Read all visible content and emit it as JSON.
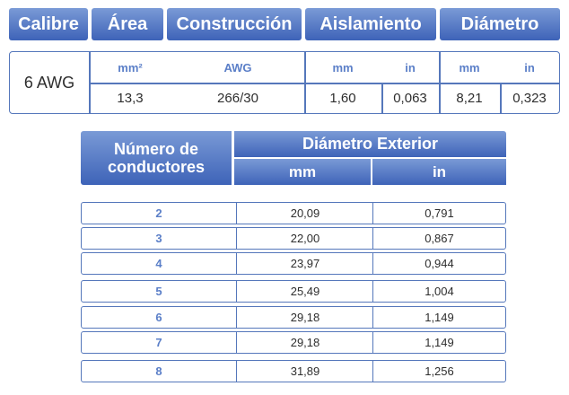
{
  "top_table": {
    "headers": {
      "calibre": "Calibre",
      "area": "Área",
      "construccion": "Construcción",
      "aislamiento": "Aislamiento",
      "diametro": "Diámetro"
    },
    "units": {
      "area": "mm²",
      "construccion": "AWG",
      "aislamiento_mm": "mm",
      "aislamiento_in": "in",
      "diametro_mm": "mm",
      "diametro_in": "in"
    },
    "values": {
      "calibre": "6 AWG",
      "area": "13,3",
      "construccion": "266/30",
      "aislamiento_mm": "1,60",
      "aislamiento_in": "0,063",
      "diametro_mm": "8,21",
      "diametro_in": "0,323"
    }
  },
  "bottom_table": {
    "header_conductores": "Número de conductores",
    "header_diametro": "Diámetro Exterior",
    "unit_mm": "mm",
    "unit_in": "in",
    "rows": [
      {
        "n": "2",
        "mm": "20,09",
        "in": "0,791"
      },
      {
        "n": "3",
        "mm": "22,00",
        "in": "0,867"
      },
      {
        "n": "4",
        "mm": "23,97",
        "in": "0,944"
      },
      {
        "n": "5",
        "mm": "25,49",
        "in": "1,004"
      },
      {
        "n": "6",
        "mm": "29,18",
        "in": "1,149"
      },
      {
        "n": "7",
        "mm": "29,18",
        "in": "1,149"
      },
      {
        "n": "8",
        "mm": "31,89",
        "in": "1,256"
      }
    ]
  }
}
